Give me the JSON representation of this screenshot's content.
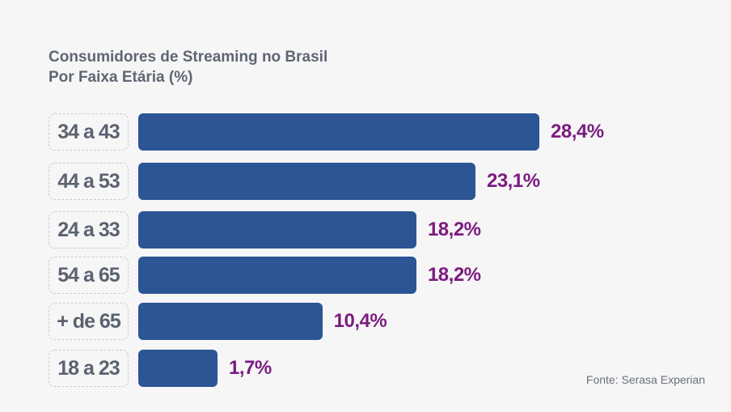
{
  "chart_data": {
    "type": "bar",
    "orientation": "horizontal",
    "title": "Consumidores de Streaming no Brasil",
    "subtitle": "Por Faixa Etária (%)",
    "categories": [
      "34 a 43",
      "44 a 53",
      "24 a 33",
      "54 a 65",
      "+ de 65",
      "18 a 23"
    ],
    "values": [
      28.4,
      23.1,
      18.2,
      18.2,
      10.4,
      1.7
    ],
    "value_labels": [
      "28,4%",
      "23,1%",
      "18,2%",
      "18,2%",
      "10,4%",
      "1,7%"
    ],
    "xlim": [
      0,
      28.4
    ],
    "grid": false,
    "bar_color": "#2b5594",
    "label_color": "#7b1c80"
  },
  "source": "Fonte: Serasa Experian"
}
